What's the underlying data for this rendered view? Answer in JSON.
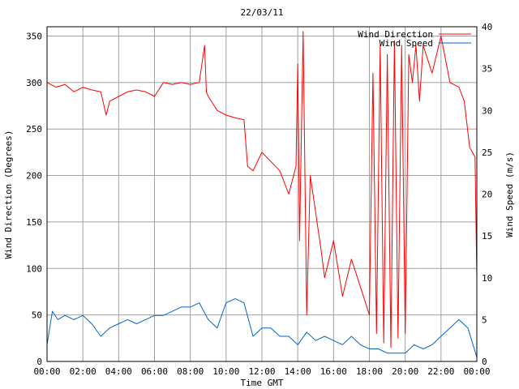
{
  "chart_data": {
    "type": "line",
    "title": "22/03/11",
    "xlabel": "Time GMT",
    "ylabel_left": "Wind Direction (Degrees)",
    "ylabel_right": "Wind Speed (m/s)",
    "x_ticks": [
      "00:00",
      "02:00",
      "04:00",
      "06:00",
      "08:00",
      "10:00",
      "12:00",
      "14:00",
      "16:00",
      "18:00",
      "20:00",
      "22:00",
      "00:00"
    ],
    "x_range_hours": [
      0,
      24
    ],
    "y_left_ticks": [
      "0",
      "50",
      "100",
      "150",
      "200",
      "250",
      "300",
      "350"
    ],
    "y_left_range": [
      0,
      360
    ],
    "y_right_ticks": [
      "0",
      "5",
      "10",
      "15",
      "20",
      "25",
      "30",
      "35",
      "40"
    ],
    "y_right_range": [
      0,
      40
    ],
    "grid": true,
    "legend_position": "top-right",
    "series": [
      {
        "name": "Wind Direction",
        "axis": "left",
        "color": "#ff0000",
        "hours": [
          0,
          0.5,
          1,
          1.5,
          2,
          2.5,
          3,
          3.3,
          3.5,
          4,
          4.5,
          5,
          5.5,
          6,
          6.5,
          7,
          7.5,
          8,
          8.5,
          8.8,
          8.9,
          9,
          9.5,
          10,
          10.5,
          11,
          11.2,
          11.5,
          12,
          12.5,
          13,
          13.5,
          13.9,
          14,
          14.1,
          14.3,
          14.5,
          14.7,
          15,
          15.3,
          15.5,
          16,
          16.5,
          17,
          17.5,
          18,
          18.2,
          18.4,
          18.6,
          18.8,
          19,
          19.2,
          19.4,
          19.6,
          19.8,
          20,
          20.2,
          20.4,
          20.6,
          20.8,
          21,
          21.5,
          22,
          22.5,
          23,
          23.3,
          23.6,
          23.9,
          24
        ],
        "values": [
          300,
          295,
          298,
          290,
          295,
          292,
          290,
          265,
          280,
          285,
          290,
          292,
          290,
          285,
          300,
          298,
          300,
          298,
          300,
          340,
          290,
          285,
          270,
          265,
          262,
          260,
          210,
          205,
          225,
          215,
          205,
          180,
          210,
          320,
          130,
          355,
          50,
          200,
          160,
          120,
          90,
          130,
          70,
          110,
          80,
          50,
          310,
          30,
          340,
          20,
          330,
          15,
          345,
          25,
          340,
          30,
          330,
          300,
          340,
          280,
          340,
          310,
          350,
          300,
          295,
          280,
          230,
          220,
          90
        ]
      },
      {
        "name": "Wind Speed",
        "axis": "right",
        "color": "#0066cc",
        "hours": [
          0,
          0.3,
          0.6,
          1,
          1.5,
          2,
          2.5,
          3,
          3.5,
          4,
          4.5,
          5,
          5.5,
          6,
          6.5,
          7,
          7.5,
          8,
          8.5,
          9,
          9.5,
          10,
          10.5,
          11,
          11.5,
          12,
          12.5,
          13,
          13.5,
          14,
          14.5,
          15,
          15.5,
          16,
          16.5,
          17,
          17.5,
          18,
          18.5,
          19,
          19.5,
          20,
          20.5,
          21,
          21.5,
          22,
          22.5,
          23,
          23.5,
          24
        ],
        "values": [
          2,
          6,
          5,
          5.5,
          5,
          5.5,
          4.5,
          3,
          4,
          4.5,
          5,
          4.5,
          5,
          5.5,
          5.5,
          6,
          6.5,
          6.5,
          7,
          5,
          4,
          7,
          7.5,
          7,
          3,
          4,
          4,
          3,
          3,
          2,
          3.5,
          2.5,
          3,
          2.5,
          2,
          3,
          2,
          1.5,
          1.5,
          1,
          1,
          1,
          2,
          1.5,
          2,
          3,
          4,
          5,
          4,
          0.5
        ]
      }
    ]
  }
}
